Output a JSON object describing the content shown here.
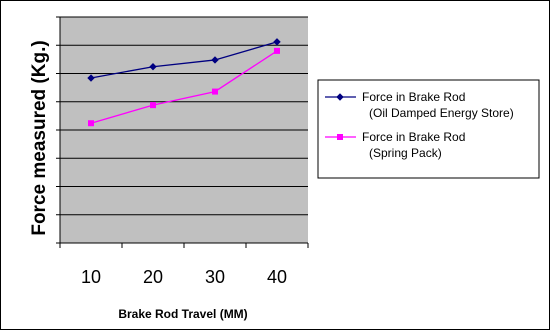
{
  "chart_data": {
    "type": "line",
    "categories": [
      "10",
      "20",
      "30",
      "40"
    ],
    "series": [
      {
        "name_line1": "Force in Brake Rod",
        "name_line2": "(Oil Damped Energy Store)",
        "values": [
          73,
          78,
          81,
          89
        ],
        "color": "#000080",
        "marker": "diamond"
      },
      {
        "name_line1": "Force in Brake Rod",
        "name_line2": "(Spring Pack)",
        "values": [
          53,
          61,
          67,
          85
        ],
        "color": "#FF00FF",
        "marker": "square"
      }
    ],
    "xlabel": "Brake Rod Travel (MM)",
    "ylabel": "Force measured (Kg.)",
    "ylim": [
      0,
      100
    ],
    "y_gridlines": [
      0,
      12.5,
      25,
      37.5,
      50,
      62.5,
      75,
      87.5,
      100
    ],
    "plot_background": "#C0C0C0",
    "grid_color": "#000000",
    "grid": true,
    "legend_position": "right"
  }
}
